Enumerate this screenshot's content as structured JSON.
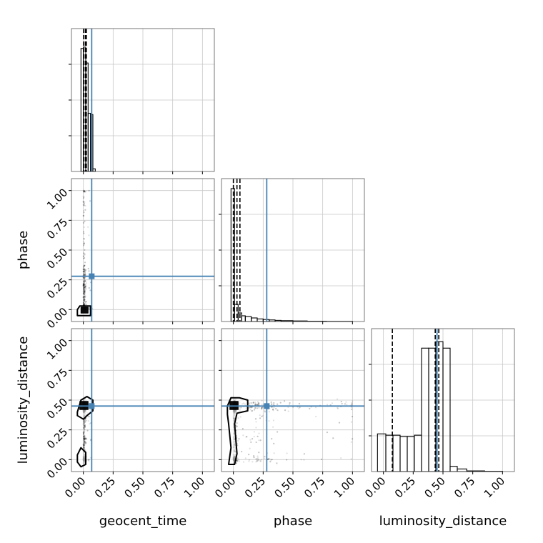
{
  "chart_data": {
    "type": "corner",
    "params": [
      "geocent_time",
      "phase",
      "luminosity_distance"
    ],
    "labels": {
      "x": [
        "geocent_time",
        "phase",
        "luminosity_distance"
      ],
      "y": [
        "",
        "phase",
        "luminosity_distance"
      ]
    },
    "range": [
      -0.1,
      1.1
    ],
    "ticks": {
      "values": [
        0.0,
        0.25,
        0.5,
        0.75,
        1.0
      ],
      "labels": [
        "0.00",
        "0.25",
        "0.50",
        "0.75",
        "1.00"
      ]
    },
    "grid": true,
    "truths": {
      "values": [
        0.07,
        0.28,
        0.45
      ],
      "color": "#4682b4"
    },
    "quantiles": {
      "geocent_time": [
        0.002,
        0.017,
        0.025
      ],
      "phase": [
        0.0,
        0.03,
        0.055
      ],
      "luminosity_distance": [
        0.075,
        0.435,
        0.465
      ]
    },
    "histograms": {
      "geocent_time": {
        "edges": [
          -0.04,
          -0.02,
          0.0,
          0.02,
          0.04,
          0.06,
          0.08,
          0.1,
          0.12
        ],
        "counts": [
          0,
          0.93,
          0.94,
          0.82,
          0.44,
          0.43,
          0.02,
          0
        ],
        "ymax": 1.08
      },
      "phase": {
        "edges": [
          -0.02,
          0.01,
          0.04,
          0.07,
          0.1,
          0.15,
          0.2,
          0.25,
          0.3,
          0.35,
          0.4,
          0.5,
          0.62,
          0.78,
          1.0
        ],
        "counts": [
          0.93,
          0.12,
          0.06,
          0.04,
          0.035,
          0.025,
          0.018,
          0.014,
          0.011,
          0.008,
          0.006,
          0.004,
          0.002,
          0.001
        ],
        "ymax": 1.0
      },
      "luminosity_distance": {
        "edges": [
          -0.05,
          0.02,
          0.08,
          0.14,
          0.2,
          0.26,
          0.32,
          0.38,
          0.44,
          0.5,
          0.56,
          0.62,
          0.7,
          0.85,
          1.0
        ],
        "counts": [
          0.29,
          0.28,
          0.28,
          0.27,
          0.27,
          0.28,
          0.95,
          0.95,
          1.0,
          0.95,
          0.04,
          0.02,
          0.005,
          0.002
        ],
        "ymax": 1.1
      }
    },
    "colors": {
      "truth": "#4682b4",
      "hist": "#000000",
      "grid": "#c8c8c8",
      "scatter": "#000000"
    }
  }
}
